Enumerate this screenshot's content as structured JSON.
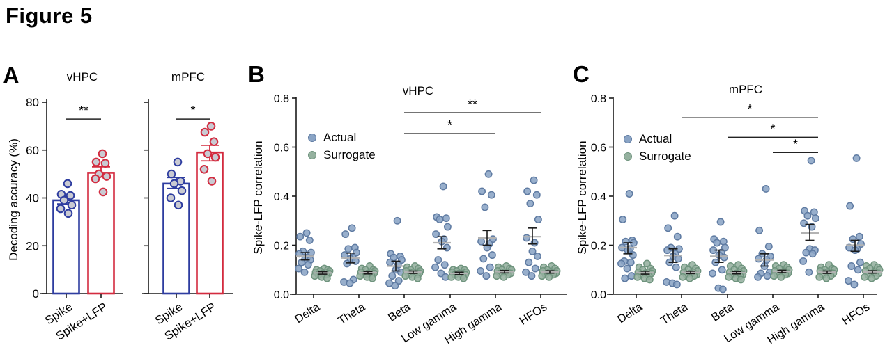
{
  "figure_title": "Figure 5",
  "legend": {
    "actual": "Actual",
    "surrogate": "Surrogate"
  },
  "colors": {
    "actual_fill": "#8aa4c5",
    "actual_edge": "#5f7ba2",
    "surrogate_fill": "#95b19f",
    "surrogate_edge": "#6f947e",
    "bar_blue": "#2e3da0",
    "bar_red": "#d32b3f",
    "point_fill_gray": "#c9cad2",
    "axis_black": "#1a1a1a",
    "mean_gray": "#b3b3b3",
    "sig_line": "#222222"
  },
  "chart_data": [
    {
      "id": "A",
      "type": "bar",
      "panel_label": "A",
      "ylabel": "Decoding accuracy (%)",
      "ylim": [
        0,
        80
      ],
      "ytick_labels": [
        "0",
        "20",
        "40",
        "60",
        "80"
      ],
      "categories": [
        "Spike",
        "Spike+LFP"
      ],
      "subplots": [
        {
          "title": "vHPC",
          "significance": {
            "label": "**",
            "height": 73
          },
          "bars": [
            {
              "label": "Spike",
              "color_key": "bar_blue",
              "mean": 39,
              "sem": [
                37.5,
                41
              ],
              "points": [
                46,
                41.5,
                41,
                39,
                37,
                35.5,
                33.5
              ]
            },
            {
              "label": "Spike+LFP",
              "color_key": "bar_red",
              "mean": 50.5,
              "sem": [
                49,
                53
              ],
              "points": [
                58.5,
                55,
                54.5,
                50,
                49,
                48,
                42.5
              ]
            }
          ]
        },
        {
          "title": "mPFC",
          "significance": {
            "label": "*",
            "height": 73
          },
          "bars": [
            {
              "label": "Spike",
              "color_key": "bar_blue",
              "mean": 46,
              "sem": [
                44,
                48.5
              ],
              "points": [
                55,
                50,
                47,
                46,
                43,
                40,
                37
              ]
            },
            {
              "label": "Spike+LFP",
              "color_key": "bar_red",
              "mean": 59,
              "sem": [
                55.5,
                62
              ],
              "points": [
                70,
                67.5,
                63.5,
                58.5,
                57,
                52,
                47
              ]
            }
          ]
        }
      ]
    },
    {
      "id": "B",
      "type": "scatter",
      "panel_label": "B",
      "title": "vHPC",
      "ylabel": "Spike-LFP correlation",
      "ylim": [
        0,
        0.8
      ],
      "ytick_labels": [
        "0.0",
        "0.2",
        "0.4",
        "0.6",
        "0.8"
      ],
      "categories": [
        "Delta",
        "Theta",
        "Beta",
        "Low gamma",
        "High gamma",
        "HFOs"
      ],
      "series_labels": [
        "Actual",
        "Surrogate"
      ],
      "significance": [
        {
          "label": "**",
          "from": "Beta",
          "to": "HFOs",
          "height": 0.74
        },
        {
          "label": "*",
          "from": "Beta",
          "to": "High gamma",
          "height": 0.655
        }
      ],
      "groups": [
        {
          "category": "Delta",
          "actual": {
            "mean": 0.155,
            "sem": [
              0.14,
              0.17
            ],
            "points": [
              0.25,
              0.235,
              0.22,
              0.175,
              0.17,
              0.165,
              0.15,
              0.145,
              0.14,
              0.13,
              0.12,
              0.105,
              0.09
            ]
          },
          "surrogate": {
            "mean": 0.087,
            "sem": [
              0.082,
              0.092
            ],
            "points": [
              0.105,
              0.1,
              0.1,
              0.095,
              0.095,
              0.09,
              0.09,
              0.085,
              0.085,
              0.08,
              0.08,
              0.075,
              0.07,
              0.065
            ]
          }
        },
        {
          "category": "Theta",
          "actual": {
            "mean": 0.148,
            "sem": [
              0.128,
              0.168
            ],
            "points": [
              0.27,
              0.245,
              0.19,
              0.185,
              0.17,
              0.16,
              0.15,
              0.145,
              0.135,
              0.125,
              0.06,
              0.05,
              0.045
            ]
          },
          "surrogate": {
            "mean": 0.088,
            "sem": [
              0.083,
              0.093
            ],
            "points": [
              0.115,
              0.105,
              0.1,
              0.1,
              0.095,
              0.09,
              0.09,
              0.085,
              0.085,
              0.08,
              0.075,
              0.075,
              0.07,
              0.065
            ]
          }
        },
        {
          "category": "Beta",
          "actual": {
            "mean": 0.115,
            "sem": [
              0.095,
              0.135
            ],
            "points": [
              0.3,
              0.165,
              0.155,
              0.15,
              0.14,
              0.13,
              0.12,
              0.1,
              0.09,
              0.075,
              0.055,
              0.045,
              0.035
            ]
          },
          "surrogate": {
            "mean": 0.09,
            "sem": [
              0.085,
              0.095
            ],
            "points": [
              0.115,
              0.11,
              0.105,
              0.1,
              0.095,
              0.095,
              0.09,
              0.09,
              0.085,
              0.08,
              0.08,
              0.075,
              0.07,
              0.065
            ]
          }
        },
        {
          "category": "Low gamma",
          "actual": {
            "mean": 0.21,
            "sem": [
              0.185,
              0.235
            ],
            "points": [
              0.44,
              0.315,
              0.31,
              0.305,
              0.275,
              0.245,
              0.225,
              0.215,
              0.19,
              0.14,
              0.12,
              0.11,
              0.085,
              0.07
            ]
          },
          "surrogate": {
            "mean": 0.085,
            "sem": [
              0.08,
              0.09
            ],
            "points": [
              0.105,
              0.1,
              0.1,
              0.095,
              0.09,
              0.09,
              0.085,
              0.085,
              0.08,
              0.08,
              0.075,
              0.07,
              0.07,
              0.065
            ]
          }
        },
        {
          "category": "High gamma",
          "actual": {
            "mean": 0.23,
            "sem": [
              0.2,
              0.26
            ],
            "points": [
              0.49,
              0.42,
              0.405,
              0.355,
              0.225,
              0.215,
              0.205,
              0.19,
              0.16,
              0.145,
              0.11,
              0.095,
              0.075
            ]
          },
          "surrogate": {
            "mean": 0.092,
            "sem": [
              0.087,
              0.097
            ],
            "points": [
              0.115,
              0.11,
              0.105,
              0.1,
              0.1,
              0.095,
              0.09,
              0.09,
              0.085,
              0.085,
              0.08,
              0.075,
              0.07
            ]
          }
        },
        {
          "category": "HFOs",
          "actual": {
            "mean": 0.235,
            "sem": [
              0.205,
              0.27
            ],
            "points": [
              0.465,
              0.42,
              0.405,
              0.37,
              0.305,
              0.23,
              0.21,
              0.175,
              0.155,
              0.13,
              0.105,
              0.09,
              0.075
            ]
          },
          "surrogate": {
            "mean": 0.091,
            "sem": [
              0.086,
              0.096
            ],
            "points": [
              0.115,
              0.11,
              0.105,
              0.1,
              0.095,
              0.095,
              0.09,
              0.09,
              0.085,
              0.08,
              0.08,
              0.075,
              0.07
            ]
          }
        }
      ]
    },
    {
      "id": "C",
      "type": "scatter",
      "panel_label": "C",
      "title": "mPFC",
      "ylabel": "Spike-LFP correlation",
      "ylim": [
        0,
        0.8
      ],
      "ytick_labels": [
        "0.0",
        "0.2",
        "0.4",
        "0.6",
        "0.8"
      ],
      "categories": [
        "Delta",
        "Theta",
        "Beta",
        "Low gamma",
        "High gamma",
        "HFOs"
      ],
      "series_labels": [
        "Actual",
        "Surrogate"
      ],
      "significance": [
        {
          "label": "*",
          "from": "Theta",
          "to": "High gamma",
          "height": 0.72
        },
        {
          "label": "*",
          "from": "Beta",
          "to": "High gamma",
          "height": 0.64
        },
        {
          "label": "*",
          "from": "Low gamma",
          "to": "High gamma",
          "height": 0.578
        }
      ],
      "groups": [
        {
          "category": "Delta",
          "actual": {
            "mean": 0.19,
            "sem": [
              0.165,
              0.21
            ],
            "points": [
              0.41,
              0.305,
              0.22,
              0.215,
              0.21,
              0.19,
              0.185,
              0.18,
              0.16,
              0.135,
              0.13,
              0.125,
              0.105,
              0.075,
              0.065
            ]
          },
          "surrogate": {
            "mean": 0.088,
            "sem": [
              0.082,
              0.094
            ],
            "points": [
              0.125,
              0.11,
              0.105,
              0.1,
              0.095,
              0.09,
              0.09,
              0.085,
              0.085,
              0.08,
              0.075,
              0.07,
              0.065,
              0.06
            ]
          }
        },
        {
          "category": "Theta",
          "actual": {
            "mean": 0.158,
            "sem": [
              0.13,
              0.185
            ],
            "points": [
              0.32,
              0.27,
              0.235,
              0.19,
              0.185,
              0.18,
              0.165,
              0.155,
              0.145,
              0.13,
              0.11,
              0.05,
              0.045,
              0.04
            ]
          },
          "surrogate": {
            "mean": 0.089,
            "sem": [
              0.084,
              0.094
            ],
            "points": [
              0.12,
              0.11,
              0.105,
              0.1,
              0.095,
              0.09,
              0.09,
              0.085,
              0.08,
              0.08,
              0.075,
              0.07,
              0.065
            ]
          }
        },
        {
          "category": "Beta",
          "actual": {
            "mean": 0.155,
            "sem": [
              0.13,
              0.18
            ],
            "points": [
              0.295,
              0.225,
              0.215,
              0.21,
              0.19,
              0.18,
              0.17,
              0.16,
              0.15,
              0.13,
              0.1,
              0.085,
              0.025,
              0.02
            ]
          },
          "surrogate": {
            "mean": 0.088,
            "sem": [
              0.083,
              0.093
            ],
            "points": [
              0.12,
              0.115,
              0.105,
              0.1,
              0.095,
              0.09,
              0.09,
              0.085,
              0.08,
              0.08,
              0.075,
              0.07,
              0.065,
              0.06
            ]
          }
        },
        {
          "category": "Low gamma",
          "actual": {
            "mean": 0.14,
            "sem": [
              0.115,
              0.165
            ],
            "points": [
              0.43,
              0.26,
              0.195,
              0.165,
              0.155,
              0.145,
              0.14,
              0.115,
              0.09,
              0.085,
              0.075,
              0.07
            ]
          },
          "surrogate": {
            "mean": 0.093,
            "sem": [
              0.088,
              0.098
            ],
            "points": [
              0.12,
              0.115,
              0.11,
              0.105,
              0.1,
              0.095,
              0.09,
              0.09,
              0.085,
              0.08,
              0.08,
              0.075,
              0.07
            ]
          }
        },
        {
          "category": "High gamma",
          "actual": {
            "mean": 0.25,
            "sem": [
              0.22,
              0.285
            ],
            "points": [
              0.545,
              0.34,
              0.335,
              0.32,
              0.31,
              0.29,
              0.275,
              0.185,
              0.18,
              0.17,
              0.165,
              0.135,
              0.09
            ]
          },
          "surrogate": {
            "mean": 0.09,
            "sem": [
              0.085,
              0.095
            ],
            "points": [
              0.12,
              0.11,
              0.105,
              0.1,
              0.1,
              0.095,
              0.09,
              0.09,
              0.085,
              0.08,
              0.075,
              0.07,
              0.065
            ]
          }
        },
        {
          "category": "HFOs",
          "actual": {
            "mean": 0.2,
            "sem": [
              0.175,
              0.22
            ],
            "points": [
              0.555,
              0.36,
              0.235,
              0.225,
              0.205,
              0.19,
              0.185,
              0.18,
              0.13,
              0.115,
              0.1,
              0.055,
              0.04
            ]
          },
          "surrogate": {
            "mean": 0.091,
            "sem": [
              0.086,
              0.096
            ],
            "points": [
              0.12,
              0.115,
              0.11,
              0.105,
              0.1,
              0.095,
              0.09,
              0.085,
              0.085,
              0.08,
              0.075,
              0.07,
              0.065
            ]
          }
        }
      ]
    }
  ]
}
